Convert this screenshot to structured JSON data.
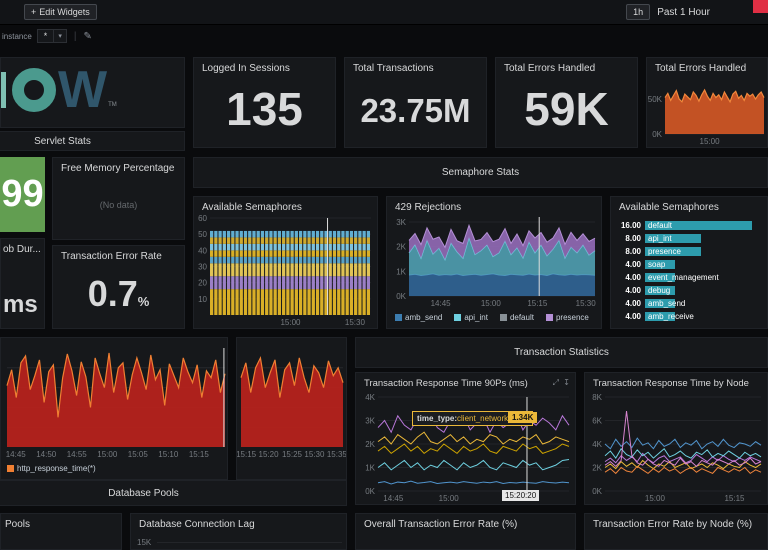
{
  "colors": {
    "green": "#629e51",
    "red_badge": "#e02f44",
    "yellow": "#eab839",
    "sem_bar": "#2d9cad",
    "http_legend_marker": "#f07f32"
  },
  "topbar": {
    "edit_widgets": "Edit Widgets",
    "plus": "+",
    "time_badge": "1h",
    "time_label": "Past 1 Hour"
  },
  "filterbar": {
    "instance_label": "instance",
    "instance_value": "*",
    "caret": "▾",
    "divider": "|",
    "pencil": "✎"
  },
  "logo": {
    "letter": "W",
    "tm": "TM"
  },
  "row_headers": {
    "servlet": "Servlet Stats",
    "semaphore": "Semaphore Stats",
    "transaction": "Transaction Statistics",
    "database": "Database Pools"
  },
  "stats": {
    "logged_in_sessions": {
      "title": "Logged In Sessions",
      "value": "135"
    },
    "total_transactions": {
      "title": "Total Transactions",
      "value": "23.75M"
    },
    "total_errors": {
      "title": "Total Errors Handled",
      "value": "59K"
    },
    "errors_chart_title": "Total Errors Handled",
    "green_stat": {
      "value": "99"
    },
    "free_memory": {
      "title": "Free Memory Percentage",
      "value": "(No data)"
    },
    "error_rate": {
      "title": "Transaction Error Rate",
      "value": "0.7",
      "unit": "%"
    },
    "job_duration": {
      "title": "ob Dur...",
      "value": "ms"
    }
  },
  "semaphores": {
    "bar_title": "Available Semaphores",
    "rejections_title": "429 Rejections",
    "list_title": "Available Semaphores",
    "list": [
      {
        "value": "16.00",
        "label": "default",
        "pct": 92
      },
      {
        "value": "8.00",
        "label": "api_int",
        "pct": 48
      },
      {
        "value": "8.00",
        "label": "presence",
        "pct": 48
      },
      {
        "value": "4.00",
        "label": "soap",
        "pct": 26
      },
      {
        "value": "4.00",
        "label": "event_management",
        "pct": 26
      },
      {
        "value": "4.00",
        "label": "debug",
        "pct": 26
      },
      {
        "value": "4.00",
        "label": "amb_send",
        "pct": 26
      },
      {
        "value": "4.00",
        "label": "amb_receive",
        "pct": 26
      }
    ],
    "legend": [
      {
        "label": "amb_send",
        "color": "#3c7db0"
      },
      {
        "label": "api_int",
        "color": "#6ed0e0"
      },
      {
        "label": "default",
        "color": "#899197"
      },
      {
        "label": "presence",
        "color": "#b490d6"
      }
    ]
  },
  "response": {
    "p90_title": "Transaction Response Time 90Ps (ms)",
    "by_node_title": "Transaction Response Time by Node",
    "tooltip_label": "time_type:",
    "tooltip_value": "client_network_time",
    "tooltip_badge": "1.34K",
    "crosshair_time": "15:20:20",
    "legend_http": "http_response_time(*)"
  },
  "bottom": {
    "pools_title": "Pools",
    "conn_lag_title": "Database Connection Lag",
    "conn_lag_ytick": "15K",
    "overall_error_title": "Overall Transaction Error Rate (%)",
    "node_error_title": "Transaction Error Rate by Node (%)"
  },
  "charts": {
    "errors_spark": {
      "padL": 18,
      "padT": 2,
      "padR": 3,
      "ymax": 80,
      "yticks": [
        {
          "label": "50K",
          "v": 50
        },
        {
          "label": "0K",
          "v": 0
        }
      ],
      "xticks": [
        {
          "label": "15:00",
          "p": 0.45
        }
      ],
      "series": [
        {
          "type": "area",
          "stroke": "#f2883c",
          "fill": "rgba(226,93,38,0.85)",
          "values": [
            52,
            58,
            48,
            55,
            62,
            50,
            46,
            57,
            53,
            49,
            60,
            55,
            47,
            56,
            63,
            54,
            48,
            58,
            52,
            56,
            49,
            60,
            53,
            46,
            57,
            61,
            51,
            55,
            48,
            58,
            54,
            57,
            50,
            56,
            60,
            52
          ]
        }
      ]
    },
    "sem_bars": {
      "padL": 16,
      "padT": 4,
      "padR": 6,
      "ymax": 60,
      "yticks": [
        {
          "label": "60",
          "v": 60
        },
        {
          "label": "50",
          "v": 50
        },
        {
          "label": "40",
          "v": 40
        },
        {
          "label": "30",
          "v": 30
        },
        {
          "label": "20",
          "v": 20
        },
        {
          "label": "10",
          "v": 10
        }
      ],
      "xticks": [
        {
          "label": "15:00",
          "p": 0.5
        },
        {
          "label": "15:30",
          "p": 0.9
        }
      ],
      "crosshair": {
        "p": 0.73
      },
      "bars": {
        "count": 38,
        "values": [
          16,
          8,
          8,
          4,
          4,
          4,
          4,
          4
        ],
        "colors": [
          "#d9af27",
          "#9b7fc6",
          "#e0c356",
          "#5ba3c7",
          "#d9af27",
          "#7ec2dd",
          "#cfa92e",
          "#61aed1"
        ]
      }
    },
    "rejections": {
      "padL": 22,
      "padT": 4,
      "padR": 6,
      "ymax": 3.2,
      "yticks": [
        {
          "label": "3K",
          "v": 3
        },
        {
          "label": "2K",
          "v": 2
        },
        {
          "label": "1K",
          "v": 1
        },
        {
          "label": "0K",
          "v": 0
        }
      ],
      "xticks": [
        {
          "label": "14:45",
          "p": 0.17
        },
        {
          "label": "15:00",
          "p": 0.44
        },
        {
          "label": "15:15",
          "p": 0.69
        },
        {
          "label": "15:30",
          "p": 0.95
        }
      ],
      "crosshair": {
        "p": 0.7
      },
      "series": [
        {
          "type": "stack",
          "stroke": "#4e91c4",
          "fill": "rgba(47,98,145,0.95)",
          "values": [
            0.85,
            0.88,
            0.83,
            0.86,
            0.9,
            0.84,
            0.87,
            0.85,
            0.89,
            0.83,
            0.86,
            0.88,
            0.84,
            0.87,
            0.9,
            0.85,
            0.83,
            0.88,
            0.86,
            0.84,
            0.89,
            0.85,
            0.87,
            0.83,
            0.9,
            0.86,
            0.84,
            0.88,
            0.85,
            0.87,
            0.86,
            0.84
          ]
        },
        {
          "type": "stack",
          "stroke": "#6ed0e0",
          "fill": "rgba(80,160,178,0.9)",
          "values": [
            0.9,
            1.2,
            0.7,
            1.4,
            0.8,
            1.1,
            0.6,
            1.3,
            0.9,
            0.7,
            1.5,
            0.8,
            1.0,
            1.2,
            0.7,
            0.9,
            1.4,
            0.8,
            1.1,
            0.7,
            1.3,
            0.9,
            1.2,
            0.8,
            1.0,
            1.4,
            0.7,
            1.1,
            0.9,
            1.2,
            0.8,
            1.0
          ]
        },
        {
          "type": "stack",
          "stroke": "#b490d6",
          "fill": "rgba(148,107,184,0.9)",
          "values": [
            0.5,
            0.45,
            0.55,
            0.5,
            0.6,
            0.45,
            0.5,
            0.55,
            0.45,
            0.6,
            0.5,
            0.55,
            0.45,
            0.5,
            0.6,
            0.55,
            0.5,
            0.45,
            0.55,
            0.5,
            0.45,
            0.6,
            0.5,
            0.55,
            0.45,
            0.5,
            0.55,
            0.6,
            0.5,
            0.45,
            0.55,
            0.5
          ]
        }
      ]
    },
    "red_a": {
      "padL": 6,
      "padT": 6,
      "padR": 2,
      "ymax": 1,
      "grid": 4,
      "xticks": [
        {
          "label": "14:45",
          "p": 0.04
        },
        {
          "label": "14:50",
          "p": 0.18
        },
        {
          "label": "14:55",
          "p": 0.32
        },
        {
          "label": "15:00",
          "p": 0.46
        },
        {
          "label": "15:05",
          "p": 0.6
        },
        {
          "label": "15:10",
          "p": 0.74
        },
        {
          "label": "15:15",
          "p": 0.88
        }
      ],
      "crosshair": {
        "p": 0.995
      },
      "series": [
        {
          "type": "area",
          "stroke": "#f07f32",
          "fill": "rgba(181,34,28,0.95)",
          "values": [
            0.62,
            0.78,
            0.5,
            0.85,
            0.92,
            0.58,
            0.72,
            0.88,
            0.45,
            0.76,
            0.83,
            0.3,
            0.7,
            0.94,
            0.77,
            0.52,
            0.86,
            0.71,
            0.4,
            0.9,
            0.74,
            0.6,
            0.95,
            0.55,
            0.8,
            0.85,
            0.48,
            0.73,
            0.9,
            0.75,
            0.58,
            0.93,
            0.68,
            0.78,
            0.42,
            0.84,
            0.72,
            0.6,
            0.9,
            0.76,
            0.65,
            0.83,
            0.5,
            0.77,
            0.7,
            0.88,
            0.55,
            0.74
          ]
        }
      ]
    },
    "red_b": {
      "padL": 4,
      "padT": 6,
      "padR": 3,
      "ymax": 1,
      "grid": 4,
      "xticks": [
        {
          "label": "15:15",
          "p": 0.05
        },
        {
          "label": "15:20",
          "p": 0.27
        },
        {
          "label": "15:25",
          "p": 0.5
        },
        {
          "label": "15:30",
          "p": 0.72
        },
        {
          "label": "15:35",
          "p": 0.94
        }
      ],
      "series": [
        {
          "type": "area",
          "stroke": "#f07f32",
          "fill": "rgba(181,34,28,0.95)",
          "values": [
            0.7,
            0.85,
            0.55,
            0.8,
            0.9,
            0.6,
            0.75,
            0.88,
            0.5,
            0.78,
            0.85,
            0.62,
            0.9,
            0.7,
            0.55,
            0.82,
            0.75,
            0.6,
            0.87,
            0.72,
            0.8,
            0.65
          ]
        }
      ]
    },
    "p90": {
      "padL": 22,
      "padT": 6,
      "padR": 6,
      "ymax": 4,
      "yticks": [
        {
          "label": "4K",
          "v": 4
        },
        {
          "label": "3K",
          "v": 3
        },
        {
          "label": "2K",
          "v": 2
        },
        {
          "label": "1K",
          "v": 1
        },
        {
          "label": "0K",
          "v": 0
        }
      ],
      "xticks": [
        {
          "label": "14:45",
          "p": 0.08
        },
        {
          "label": "15:00",
          "p": 0.37
        }
      ],
      "crosshair": {
        "p": 0.78
      },
      "series": [
        {
          "type": "line",
          "stroke": "#b877d9",
          "values": [
            2.7,
            3.0,
            2.5,
            3.2,
            2.8,
            2.6,
            3.1,
            2.9,
            3.3,
            2.7,
            2.5,
            3.0,
            2.8,
            3.2,
            2.6,
            2.9,
            3.1,
            2.5,
            3.0,
            2.7,
            2.9,
            3.3,
            2.6,
            3.0,
            2.8,
            3.1,
            2.9,
            2.6,
            3.2,
            2.8
          ]
        },
        {
          "type": "line",
          "stroke": "#eab839",
          "values": [
            2.1,
            2.3,
            2.0,
            2.4,
            2.2,
            2.0,
            2.3,
            2.5,
            2.1,
            2.0,
            2.2,
            2.4,
            2.1,
            2.3,
            2.0,
            2.2,
            2.1,
            2.4,
            2.3,
            2.0,
            2.2,
            2.1,
            2.3,
            2.2,
            2.4,
            2.0,
            2.1,
            2.3,
            2.2,
            2.1
          ]
        },
        {
          "type": "line",
          "stroke": "#cca300",
          "values": [
            1.7,
            1.9,
            1.6,
            1.8,
            2.0,
            1.7,
            1.9,
            1.6,
            1.8,
            1.7,
            2.0,
            1.8,
            1.6,
            1.9,
            1.7,
            1.8,
            2.0,
            1.7,
            1.6,
            1.9,
            1.8,
            1.7,
            2.0,
            1.8,
            1.9,
            1.6,
            1.7,
            1.8,
            2.0,
            1.9
          ]
        },
        {
          "type": "line",
          "stroke": "#6ed0e0",
          "values": [
            1.0,
            1.2,
            0.9,
            1.1,
            1.3,
            1.0,
            1.2,
            0.9,
            1.1,
            1.0,
            1.3,
            1.1,
            0.9,
            1.2,
            1.0,
            1.1,
            1.3,
            1.0,
            0.9,
            1.2,
            1.1,
            1.0,
            1.3,
            1.1,
            1.2,
            0.9,
            1.0,
            1.1,
            1.3,
            1.34
          ]
        },
        {
          "type": "line",
          "stroke": "#5195ce",
          "values": [
            0.35,
            0.4,
            0.3,
            0.38,
            0.35,
            0.42,
            0.33,
            0.36,
            0.4,
            0.32,
            0.35,
            0.38,
            0.34,
            0.4,
            0.36,
            0.33,
            0.38,
            0.35,
            0.4,
            0.32,
            0.36,
            0.34,
            0.38,
            0.35,
            0.33,
            0.4,
            0.36,
            0.34,
            0.38,
            0.35
          ]
        }
      ]
    },
    "by_node": {
      "padL": 20,
      "padT": 6,
      "padR": 6,
      "ymax": 8,
      "yticks": [
        {
          "label": "8K",
          "v": 8
        },
        {
          "label": "6K",
          "v": 6
        },
        {
          "label": "4K",
          "v": 4
        },
        {
          "label": "2K",
          "v": 2
        },
        {
          "label": "0K",
          "v": 0
        }
      ],
      "xticks": [
        {
          "label": "15:00",
          "p": 0.32
        },
        {
          "label": "15:15",
          "p": 0.83
        }
      ],
      "series": [
        {
          "type": "line",
          "stroke": "#b877d9",
          "values": [
            2.5,
            2.8,
            2.4,
            3.0,
            2.6,
            2.9,
            2.5,
            3.2,
            2.7,
            2.4,
            2.8,
            3.0,
            2.5,
            2.7,
            2.9,
            2.4,
            2.6,
            3.1,
            2.8,
            2.5,
            2.9,
            2.6,
            3.0,
            2.7,
            2.5,
            2.8,
            2.6,
            2.9,
            2.7,
            2.5
          ]
        },
        {
          "type": "line",
          "stroke": "#eab839",
          "values": [
            2.0,
            2.3,
            1.9,
            2.5,
            2.1,
            2.4,
            2.0,
            2.6,
            2.2,
            1.9,
            2.3,
            2.1,
            2.5,
            2.0,
            2.2,
            2.4,
            1.9,
            2.1,
            2.3,
            2.0,
            2.4,
            2.2,
            1.9,
            2.3,
            2.1,
            2.0,
            2.5,
            2.2,
            2.0,
            2.3
          ]
        },
        {
          "type": "line",
          "stroke": "#6ed0e0",
          "values": [
            3.0,
            3.4,
            2.8,
            3.6,
            3.1,
            2.9,
            3.5,
            3.0,
            3.3,
            2.8,
            3.2,
            3.6,
            2.9,
            3.1,
            3.4,
            3.0,
            2.8,
            3.3,
            3.1,
            3.5,
            2.9,
            3.2,
            3.0,
            3.4,
            3.1,
            2.8,
            3.3,
            3.0,
            3.2,
            2.9
          ]
        },
        {
          "type": "line",
          "stroke": "#ef843c",
          "values": [
            1.6,
            1.9,
            1.5,
            2.0,
            1.7,
            1.6,
            2.1,
            1.8,
            1.5,
            1.9,
            1.6,
            2.0,
            1.7,
            1.9,
            1.5,
            1.8,
            2.0,
            1.6,
            1.9,
            1.7,
            1.5,
            2.0,
            1.8,
            1.6,
            1.9,
            1.7,
            2.0,
            1.5,
            1.8,
            1.6
          ]
        },
        {
          "type": "line",
          "stroke": "#5195ce",
          "values": [
            4.0,
            3.6,
            4.4,
            3.8,
            4.2,
            3.7,
            4.5,
            3.9,
            4.1,
            3.6,
            4.3,
            3.8,
            4.0,
            4.4,
            3.7,
            4.1,
            3.9,
            4.3,
            3.6,
            4.0,
            4.2,
            3.8,
            4.4,
            3.9,
            3.7,
            4.1,
            4.0,
            3.8,
            4.2,
            3.9
          ]
        },
        {
          "type": "line",
          "stroke": "#d683ce",
          "values": [
            2.2,
            2.5,
            2.1,
            2.6,
            6.8,
            3.0,
            2.4,
            2.2,
            2.7,
            2.3,
            2.1,
            2.6,
            2.4,
            2.2,
            2.8,
            2.3,
            2.5,
            2.1,
            2.6,
            2.4,
            2.2,
            2.7,
            2.5,
            2.3,
            2.6,
            2.2,
            2.4,
            2.8,
            2.3,
            2.5
          ]
        }
      ]
    }
  }
}
